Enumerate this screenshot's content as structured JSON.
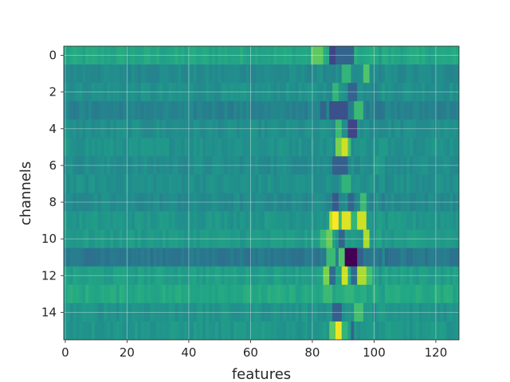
{
  "chart_data": {
    "type": "heatmap",
    "title": "",
    "xlabel": "features",
    "ylabel": "channels",
    "x_range": [
      0,
      127
    ],
    "y_range": [
      0,
      15
    ],
    "y_inverted": true,
    "grid": true,
    "colormap": "viridis",
    "value_range": [
      -1,
      1
    ],
    "rows": 16,
    "cols": 128,
    "xticks": [
      0,
      20,
      40,
      60,
      80,
      100,
      120
    ],
    "yticks": [
      0,
      2,
      4,
      6,
      8,
      10,
      12,
      14
    ],
    "row_base": [
      0.18,
      -0.05,
      0.0,
      -0.12,
      -0.02,
      0.02,
      -0.03,
      0.0,
      -0.05,
      0.05,
      0.08,
      -0.2,
      0.12,
      0.2,
      0.03,
      0.05
    ],
    "features": [
      {
        "channel": 0,
        "col_start": 80,
        "col_end": 84,
        "value": 0.5
      },
      {
        "channel": 0,
        "col_start": 86,
        "col_end": 88,
        "value": -0.6
      },
      {
        "channel": 0,
        "col_start": 88,
        "col_end": 94,
        "value": -0.35
      },
      {
        "channel": 1,
        "col_start": 90,
        "col_end": 93,
        "value": 0.3
      },
      {
        "channel": 1,
        "col_start": 97,
        "col_end": 99,
        "value": 0.45
      },
      {
        "channel": 2,
        "col_start": 87,
        "col_end": 89,
        "value": 0.3
      },
      {
        "channel": 2,
        "col_start": 92,
        "col_end": 95,
        "value": -0.35
      },
      {
        "channel": 3,
        "col_start": 83,
        "col_end": 85,
        "value": -0.35
      },
      {
        "channel": 3,
        "col_start": 86,
        "col_end": 92,
        "value": -0.5
      },
      {
        "channel": 3,
        "col_start": 94,
        "col_end": 97,
        "value": 0.35
      },
      {
        "channel": 4,
        "col_start": 88,
        "col_end": 90,
        "value": 0.35
      },
      {
        "channel": 4,
        "col_start": 92,
        "col_end": 95,
        "value": -0.6
      },
      {
        "channel": 5,
        "col_start": 88,
        "col_end": 90,
        "value": 0.6
      },
      {
        "channel": 5,
        "col_start": 90,
        "col_end": 92,
        "value": 0.85
      },
      {
        "channel": 5,
        "col_start": 92,
        "col_end": 93,
        "value": 0.4
      },
      {
        "channel": 6,
        "col_start": 87,
        "col_end": 92,
        "value": -0.4
      },
      {
        "channel": 7,
        "col_start": 90,
        "col_end": 93,
        "value": 0.3
      },
      {
        "channel": 8,
        "col_start": 87,
        "col_end": 89,
        "value": -0.45
      },
      {
        "channel": 8,
        "col_start": 92,
        "col_end": 94,
        "value": -0.35
      },
      {
        "channel": 8,
        "col_start": 96,
        "col_end": 98,
        "value": 0.35
      },
      {
        "channel": 9,
        "col_start": 86,
        "col_end": 87,
        "value": 0.8
      },
      {
        "channel": 9,
        "col_start": 87,
        "col_end": 89,
        "value": 1.0
      },
      {
        "channel": 9,
        "col_start": 89,
        "col_end": 90,
        "value": 0.35
      },
      {
        "channel": 9,
        "col_start": 90,
        "col_end": 93,
        "value": 0.9
      },
      {
        "channel": 9,
        "col_start": 93,
        "col_end": 95,
        "value": 0.3
      },
      {
        "channel": 9,
        "col_start": 95,
        "col_end": 98,
        "value": 0.85
      },
      {
        "channel": 10,
        "col_start": 83,
        "col_end": 85,
        "value": 0.35
      },
      {
        "channel": 10,
        "col_start": 85,
        "col_end": 87,
        "value": 0.55
      },
      {
        "channel": 10,
        "col_start": 89,
        "col_end": 91,
        "value": -0.35
      },
      {
        "channel": 10,
        "col_start": 97,
        "col_end": 99,
        "value": 0.75
      },
      {
        "channel": 11,
        "col_start": 85,
        "col_end": 88,
        "value": 0.35
      },
      {
        "channel": 11,
        "col_start": 89,
        "col_end": 91,
        "value": 0.45
      },
      {
        "channel": 11,
        "col_start": 91,
        "col_end": 95,
        "value": -1.0
      },
      {
        "channel": 11,
        "col_start": 95,
        "col_end": 97,
        "value": -0.4
      },
      {
        "channel": 12,
        "col_start": 84,
        "col_end": 86,
        "value": 0.6
      },
      {
        "channel": 12,
        "col_start": 86,
        "col_end": 88,
        "value": -0.3
      },
      {
        "channel": 12,
        "col_start": 90,
        "col_end": 92,
        "value": 0.85
      },
      {
        "channel": 12,
        "col_start": 93,
        "col_end": 95,
        "value": -0.3
      },
      {
        "channel": 12,
        "col_start": 95,
        "col_end": 98,
        "value": 0.75
      },
      {
        "channel": 12,
        "col_start": 98,
        "col_end": 100,
        "value": 0.4
      },
      {
        "channel": 13,
        "col_start": 84,
        "col_end": 87,
        "value": 0.35
      },
      {
        "channel": 13,
        "col_start": 91,
        "col_end": 94,
        "value": 0.3
      },
      {
        "channel": 14,
        "col_start": 87,
        "col_end": 90,
        "value": -0.4
      },
      {
        "channel": 14,
        "col_start": 94,
        "col_end": 97,
        "value": 0.4
      },
      {
        "channel": 15,
        "col_start": 86,
        "col_end": 88,
        "value": 0.5
      },
      {
        "channel": 15,
        "col_start": 88,
        "col_end": 90,
        "value": 0.95
      },
      {
        "channel": 15,
        "col_start": 90,
        "col_end": 92,
        "value": 0.3
      },
      {
        "channel": 15,
        "col_start": 93,
        "col_end": 94,
        "value": -0.35
      }
    ]
  }
}
